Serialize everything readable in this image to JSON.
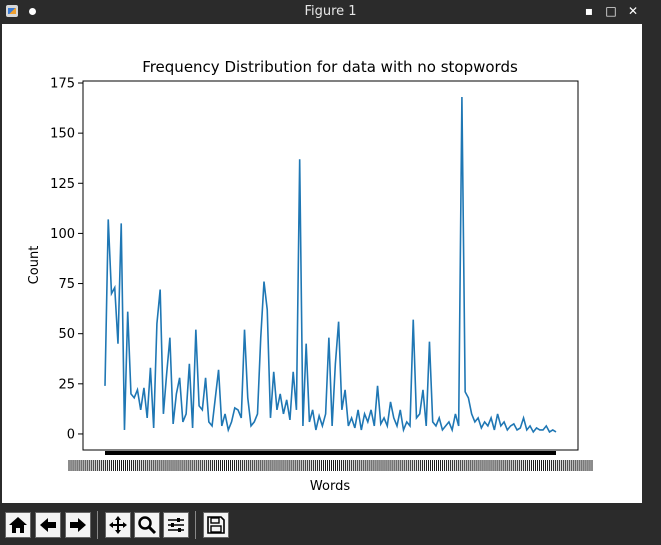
{
  "window": {
    "title": "Figure 1",
    "minimize_glyph": "▪",
    "maximize_glyph": "□",
    "close_glyph": "✕"
  },
  "toolbar": {
    "buttons": [
      {
        "name": "home",
        "icon": "home-icon"
      },
      {
        "name": "back",
        "icon": "arrow-left-icon"
      },
      {
        "name": "forward",
        "icon": "arrow-right-icon"
      },
      {
        "name": "pan",
        "icon": "move-icon"
      },
      {
        "name": "zoom",
        "icon": "zoom-icon"
      },
      {
        "name": "configure",
        "icon": "sliders-icon"
      },
      {
        "name": "save",
        "icon": "save-icon"
      }
    ]
  },
  "chart_data": {
    "type": "line",
    "title": "Frequency Distribution for data with no stopwords",
    "xlabel": "Words",
    "ylabel": "Count",
    "yticks": [
      0,
      25,
      50,
      75,
      100,
      125,
      150,
      175
    ],
    "ylim": [
      -8,
      176
    ],
    "x_tick_labels_overlapping": true,
    "color": "#1f77b4",
    "grid": false,
    "series": [
      {
        "values": [
          24,
          107,
          70,
          73,
          45,
          105,
          2,
          61,
          20,
          18,
          22,
          12,
          23,
          8,
          33,
          3,
          55,
          72,
          10,
          30,
          48,
          5,
          20,
          28,
          6,
          10,
          35,
          3,
          52,
          14,
          12,
          28,
          6,
          4,
          18,
          32,
          4,
          10,
          2,
          6,
          13,
          12,
          8,
          52,
          18,
          4,
          6,
          10,
          48,
          76,
          62,
          8,
          31,
          12,
          20,
          10,
          17,
          7,
          31,
          12,
          137,
          4,
          45,
          6,
          12,
          2,
          9,
          4,
          10,
          48,
          4,
          35,
          56,
          12,
          22,
          4,
          8,
          3,
          12,
          2,
          10,
          6,
          12,
          4,
          24,
          5,
          8,
          4,
          16,
          8,
          4,
          12,
          2,
          6,
          4,
          57,
          8,
          10,
          22,
          4,
          46,
          6,
          4,
          8,
          2,
          4,
          6,
          2,
          10,
          4,
          168,
          21,
          18,
          10,
          6,
          8,
          3,
          6,
          4,
          8,
          2,
          10,
          4,
          6,
          2,
          4,
          5,
          2,
          3,
          8,
          2,
          4,
          1,
          3,
          2,
          2,
          4,
          1,
          2,
          1
        ]
      }
    ]
  }
}
